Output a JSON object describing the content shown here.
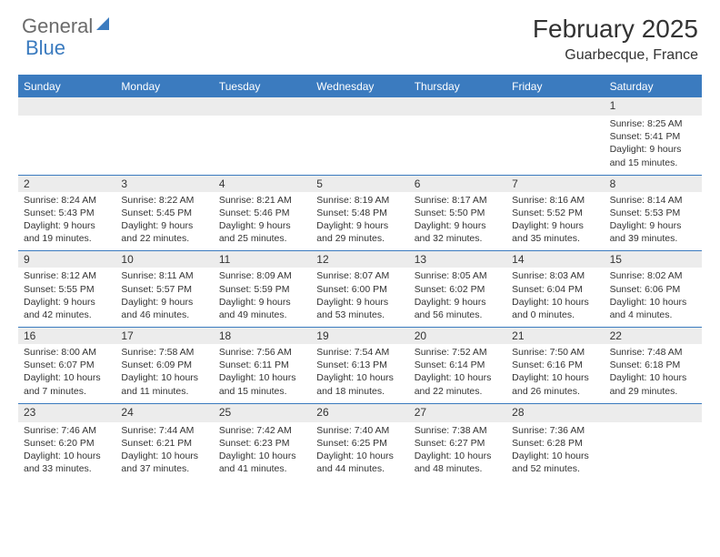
{
  "logo": {
    "part1": "General",
    "part2": "Blue"
  },
  "title": "February 2025",
  "subtitle": "Guarbecque, France",
  "dow": [
    "Sunday",
    "Monday",
    "Tuesday",
    "Wednesday",
    "Thursday",
    "Friday",
    "Saturday"
  ],
  "colors": {
    "accent": "#3b7bbf",
    "dayband": "#ececec",
    "text": "#333333"
  },
  "weeks": [
    [
      null,
      null,
      null,
      null,
      null,
      null,
      {
        "n": "1",
        "sr": "8:25 AM",
        "ss": "5:41 PM",
        "dl": "9 hours and 15 minutes."
      }
    ],
    [
      {
        "n": "2",
        "sr": "8:24 AM",
        "ss": "5:43 PM",
        "dl": "9 hours and 19 minutes."
      },
      {
        "n": "3",
        "sr": "8:22 AM",
        "ss": "5:45 PM",
        "dl": "9 hours and 22 minutes."
      },
      {
        "n": "4",
        "sr": "8:21 AM",
        "ss": "5:46 PM",
        "dl": "9 hours and 25 minutes."
      },
      {
        "n": "5",
        "sr": "8:19 AM",
        "ss": "5:48 PM",
        "dl": "9 hours and 29 minutes."
      },
      {
        "n": "6",
        "sr": "8:17 AM",
        "ss": "5:50 PM",
        "dl": "9 hours and 32 minutes."
      },
      {
        "n": "7",
        "sr": "8:16 AM",
        "ss": "5:52 PM",
        "dl": "9 hours and 35 minutes."
      },
      {
        "n": "8",
        "sr": "8:14 AM",
        "ss": "5:53 PM",
        "dl": "9 hours and 39 minutes."
      }
    ],
    [
      {
        "n": "9",
        "sr": "8:12 AM",
        "ss": "5:55 PM",
        "dl": "9 hours and 42 minutes."
      },
      {
        "n": "10",
        "sr": "8:11 AM",
        "ss": "5:57 PM",
        "dl": "9 hours and 46 minutes."
      },
      {
        "n": "11",
        "sr": "8:09 AM",
        "ss": "5:59 PM",
        "dl": "9 hours and 49 minutes."
      },
      {
        "n": "12",
        "sr": "8:07 AM",
        "ss": "6:00 PM",
        "dl": "9 hours and 53 minutes."
      },
      {
        "n": "13",
        "sr": "8:05 AM",
        "ss": "6:02 PM",
        "dl": "9 hours and 56 minutes."
      },
      {
        "n": "14",
        "sr": "8:03 AM",
        "ss": "6:04 PM",
        "dl": "10 hours and 0 minutes."
      },
      {
        "n": "15",
        "sr": "8:02 AM",
        "ss": "6:06 PM",
        "dl": "10 hours and 4 minutes."
      }
    ],
    [
      {
        "n": "16",
        "sr": "8:00 AM",
        "ss": "6:07 PM",
        "dl": "10 hours and 7 minutes."
      },
      {
        "n": "17",
        "sr": "7:58 AM",
        "ss": "6:09 PM",
        "dl": "10 hours and 11 minutes."
      },
      {
        "n": "18",
        "sr": "7:56 AM",
        "ss": "6:11 PM",
        "dl": "10 hours and 15 minutes."
      },
      {
        "n": "19",
        "sr": "7:54 AM",
        "ss": "6:13 PM",
        "dl": "10 hours and 18 minutes."
      },
      {
        "n": "20",
        "sr": "7:52 AM",
        "ss": "6:14 PM",
        "dl": "10 hours and 22 minutes."
      },
      {
        "n": "21",
        "sr": "7:50 AM",
        "ss": "6:16 PM",
        "dl": "10 hours and 26 minutes."
      },
      {
        "n": "22",
        "sr": "7:48 AM",
        "ss": "6:18 PM",
        "dl": "10 hours and 29 minutes."
      }
    ],
    [
      {
        "n": "23",
        "sr": "7:46 AM",
        "ss": "6:20 PM",
        "dl": "10 hours and 33 minutes."
      },
      {
        "n": "24",
        "sr": "7:44 AM",
        "ss": "6:21 PM",
        "dl": "10 hours and 37 minutes."
      },
      {
        "n": "25",
        "sr": "7:42 AM",
        "ss": "6:23 PM",
        "dl": "10 hours and 41 minutes."
      },
      {
        "n": "26",
        "sr": "7:40 AM",
        "ss": "6:25 PM",
        "dl": "10 hours and 44 minutes."
      },
      {
        "n": "27",
        "sr": "7:38 AM",
        "ss": "6:27 PM",
        "dl": "10 hours and 48 minutes."
      },
      {
        "n": "28",
        "sr": "7:36 AM",
        "ss": "6:28 PM",
        "dl": "10 hours and 52 minutes."
      },
      null
    ]
  ]
}
